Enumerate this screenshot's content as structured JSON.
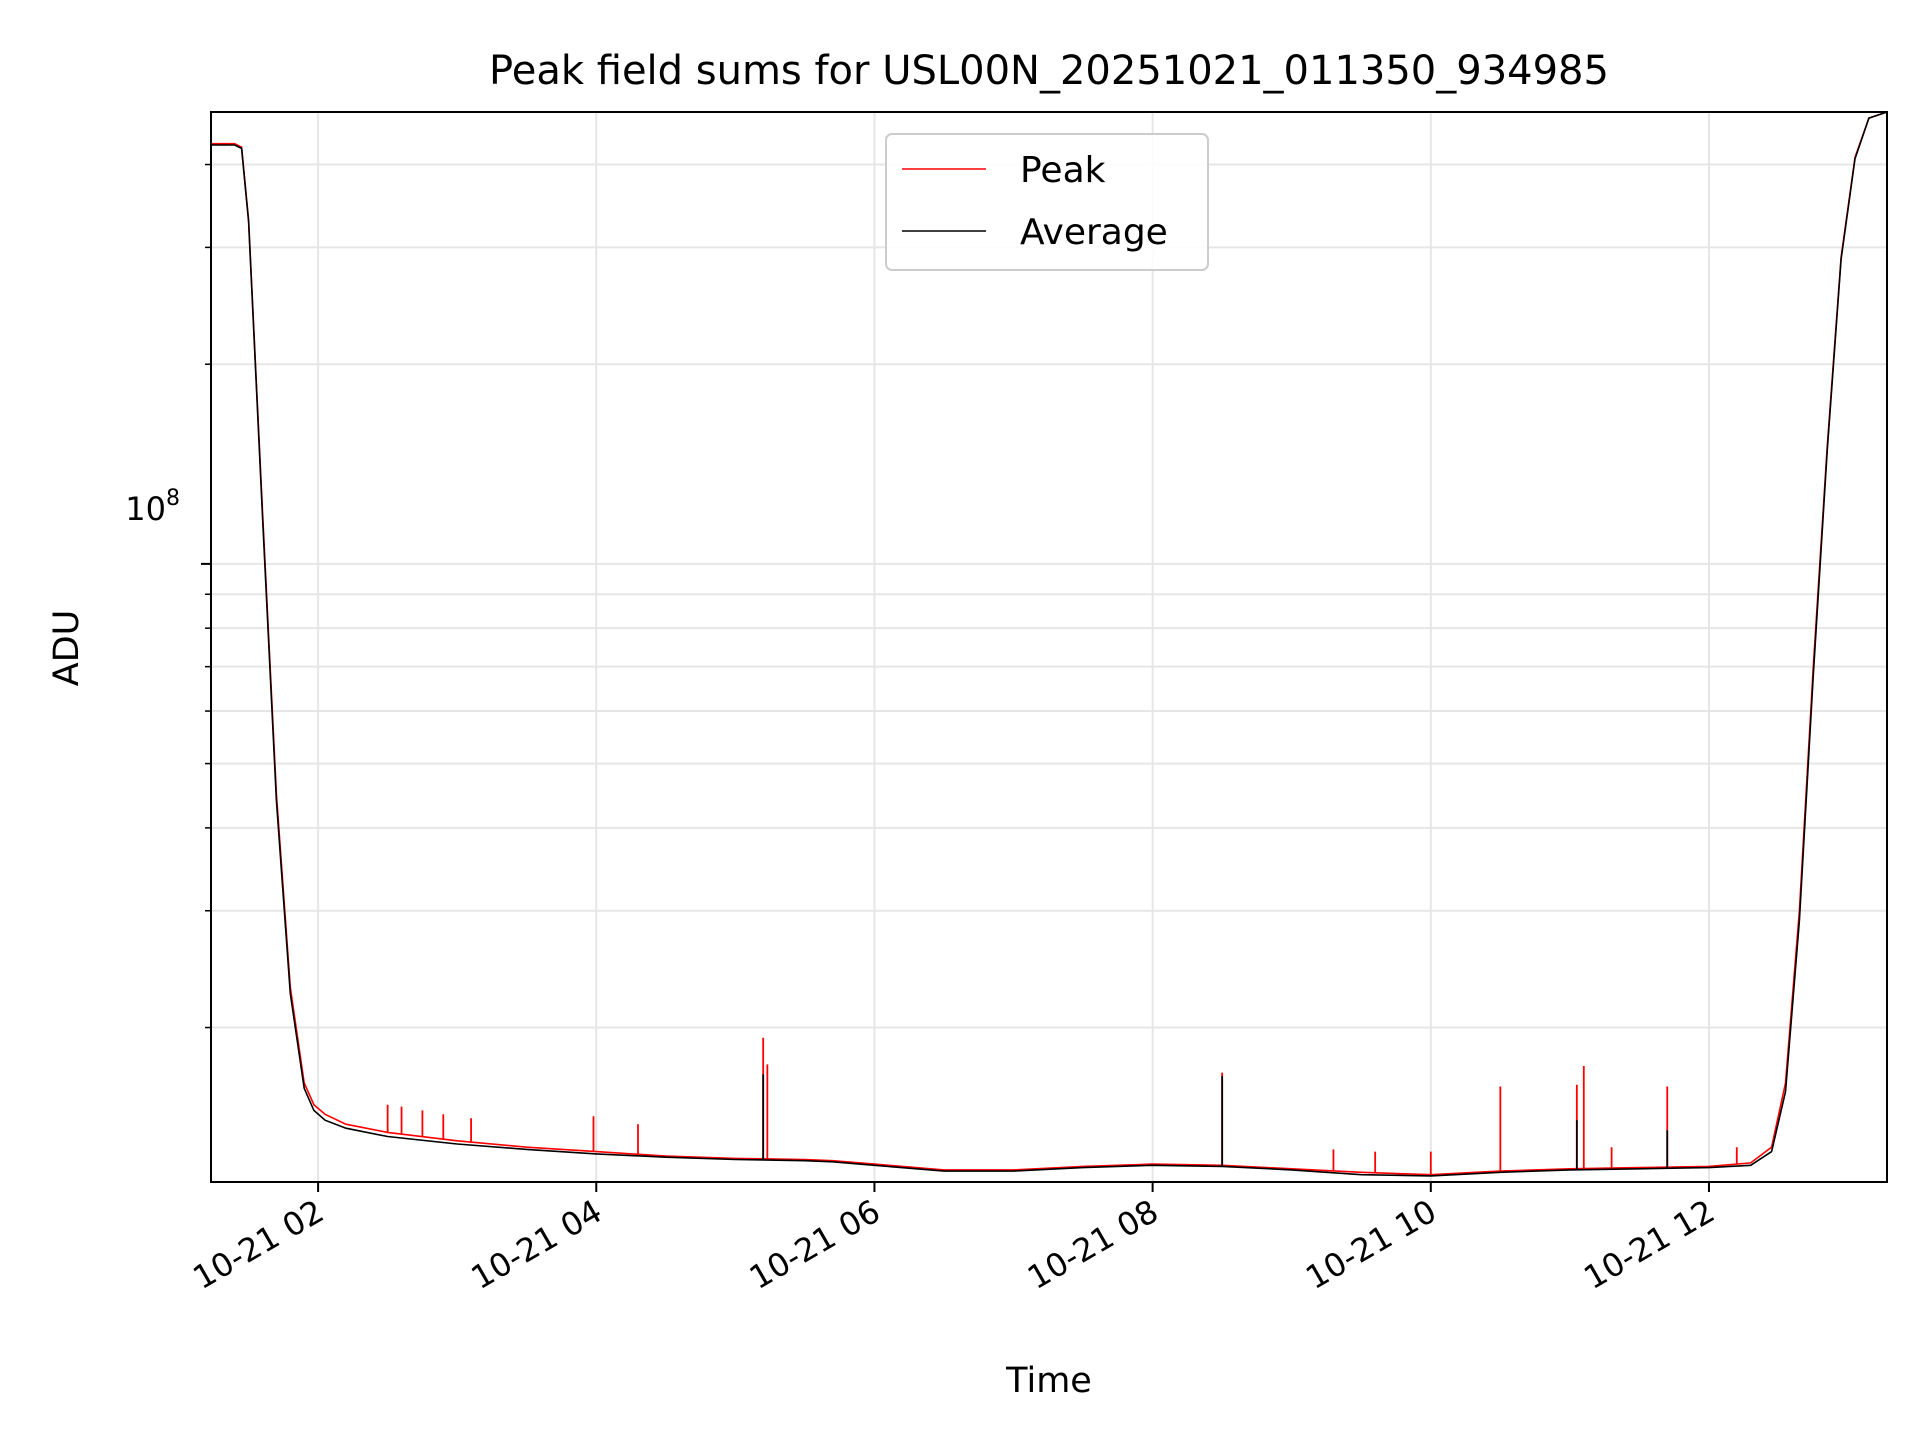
{
  "chart_data": {
    "type": "line",
    "title": "Peak field sums for USL00N_20251021_011350_934985",
    "xlabel": "Time",
    "ylabel": "ADU",
    "yscale": "log",
    "xlim_hours": [
      1.23,
      13.28
    ],
    "ylim": [
      11700000,
      480000000
    ],
    "y_tick_label": "10",
    "y_tick_exponent": "8",
    "y_tick_value": 100000000,
    "y_minor_ticks": [
      20000000,
      30000000,
      40000000,
      50000000,
      60000000,
      70000000,
      80000000,
      90000000,
      200000000,
      300000000,
      400000000
    ],
    "x_ticks": [
      {
        "hour": 2,
        "label": "10-21 02"
      },
      {
        "hour": 4,
        "label": "10-21 04"
      },
      {
        "hour": 6,
        "label": "10-21 06"
      },
      {
        "hour": 8,
        "label": "10-21 08"
      },
      {
        "hour": 10,
        "label": "10-21 10"
      },
      {
        "hour": 12,
        "label": "10-21 12"
      }
    ],
    "grid": true,
    "legend_position": "top-center",
    "series": [
      {
        "name": "Peak",
        "color": "#ff0000",
        "x_hours": [
          1.23,
          1.4,
          1.45,
          1.5,
          1.6,
          1.7,
          1.8,
          1.9,
          1.97,
          2.05,
          2.2,
          2.5,
          3.0,
          3.5,
          4.0,
          4.5,
          5.0,
          5.5,
          5.7,
          6.0,
          6.5,
          7.0,
          7.5,
          8.0,
          8.5,
          9.0,
          9.5,
          10.0,
          10.5,
          11.0,
          11.5,
          12.0,
          12.3,
          12.45,
          12.55,
          12.65,
          12.75,
          12.85,
          12.95,
          13.05,
          13.15,
          13.28
        ],
        "values": [
          430000000,
          430000000,
          425000000,
          330000000,
          120000000,
          45000000,
          23000000,
          16500000,
          15300000,
          14800000,
          14300000,
          13900000,
          13500000,
          13200000,
          13000000,
          12800000,
          12700000,
          12650000,
          12600000,
          12450000,
          12200000,
          12200000,
          12350000,
          12450000,
          12400000,
          12250000,
          12100000,
          12000000,
          12150000,
          12250000,
          12300000,
          12350000,
          12500000,
          13200000,
          16500000,
          30000000,
          70000000,
          150000000,
          290000000,
          410000000,
          470000000,
          480000000
        ],
        "spikes": [
          {
            "hour": 2.5,
            "value": 15300000
          },
          {
            "hour": 2.6,
            "value": 15200000
          },
          {
            "hour": 2.75,
            "value": 15000000
          },
          {
            "hour": 2.9,
            "value": 14800000
          },
          {
            "hour": 3.1,
            "value": 14600000
          },
          {
            "hour": 3.98,
            "value": 14700000
          },
          {
            "hour": 4.3,
            "value": 14300000
          },
          {
            "hour": 5.2,
            "value": 19300000
          },
          {
            "hour": 5.23,
            "value": 17600000
          },
          {
            "hour": 8.5,
            "value": 17100000
          },
          {
            "hour": 9.3,
            "value": 13100000
          },
          {
            "hour": 9.6,
            "value": 13000000
          },
          {
            "hour": 10.0,
            "value": 13000000
          },
          {
            "hour": 10.5,
            "value": 16300000
          },
          {
            "hour": 11.05,
            "value": 16400000
          },
          {
            "hour": 11.1,
            "value": 17500000
          },
          {
            "hour": 11.3,
            "value": 13200000
          },
          {
            "hour": 11.7,
            "value": 16300000
          },
          {
            "hour": 12.2,
            "value": 13200000
          }
        ]
      },
      {
        "name": "Average",
        "color": "#000000",
        "x_hours": [
          1.23,
          1.4,
          1.45,
          1.5,
          1.6,
          1.7,
          1.8,
          1.9,
          1.97,
          2.05,
          2.2,
          2.5,
          3.0,
          3.5,
          4.0,
          4.5,
          5.0,
          5.5,
          5.7,
          6.0,
          6.5,
          7.0,
          7.5,
          8.0,
          8.5,
          9.0,
          9.5,
          10.0,
          10.5,
          11.0,
          11.5,
          12.0,
          12.3,
          12.45,
          12.55,
          12.65,
          12.75,
          12.85,
          12.95,
          13.05,
          13.15,
          13.28
        ],
        "values": [
          428000000,
          428000000,
          423000000,
          328000000,
          118000000,
          44000000,
          22500000,
          16200000,
          15000000,
          14500000,
          14100000,
          13700000,
          13350000,
          13100000,
          12900000,
          12750000,
          12650000,
          12600000,
          12550000,
          12400000,
          12150000,
          12150000,
          12300000,
          12400000,
          12350000,
          12200000,
          12000000,
          11950000,
          12100000,
          12200000,
          12250000,
          12300000,
          12400000,
          13000000,
          16000000,
          29000000,
          68000000,
          148000000,
          288000000,
          408000000,
          470000000,
          480000000
        ],
        "spikes": [
          {
            "hour": 5.2,
            "value": 17000000
          },
          {
            "hour": 8.5,
            "value": 16900000
          },
          {
            "hour": 11.05,
            "value": 14500000
          },
          {
            "hour": 11.7,
            "value": 14000000
          }
        ]
      }
    ]
  }
}
